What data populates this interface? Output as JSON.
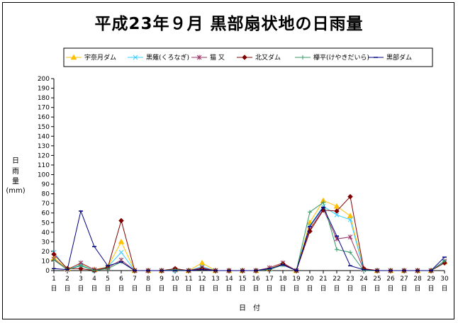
{
  "chart_data": {
    "type": "line",
    "title": "平成23年９月  黒部扇状地の日雨量",
    "ylabel": [
      "日",
      "雨",
      "量",
      "(mm)"
    ],
    "xlabel": "日　付",
    "ylim": [
      0,
      200
    ],
    "ytick_step": 10,
    "grid": false,
    "legend_position": "top",
    "categories": [
      "1",
      "2",
      "3",
      "4",
      "5",
      "6",
      "7",
      "8",
      "9",
      "10",
      "11",
      "12",
      "13",
      "14",
      "15",
      "16",
      "17",
      "18",
      "19",
      "20",
      "21",
      "22",
      "23",
      "24",
      "25",
      "26",
      "27",
      "28",
      "29",
      "30"
    ],
    "category_suffix": "日",
    "series": [
      {
        "name": "宇奈月ダム",
        "color": "#ffc000",
        "marker": "triangle",
        "values": [
          13,
          2,
          7,
          1,
          4,
          30,
          0,
          0,
          0,
          1,
          0,
          8,
          0,
          0,
          0,
          0,
          2,
          7,
          0,
          50,
          73,
          67,
          57,
          2,
          0,
          0,
          0,
          0,
          0,
          9
        ]
      },
      {
        "name": "黒薙(くろなぎ)",
        "color": "#33ccff",
        "marker": "x",
        "values": [
          19,
          1,
          6,
          0,
          4,
          19,
          0,
          0,
          0,
          0,
          0,
          4,
          0,
          0,
          0,
          0,
          1,
          6,
          0,
          47,
          67,
          58,
          53,
          1,
          0,
          0,
          0,
          0,
          0,
          9
        ]
      },
      {
        "name": "猫 又",
        "color": "#993366",
        "marker": "asterisk",
        "values": [
          12,
          1,
          8,
          1,
          3,
          11,
          0,
          0,
          0,
          1,
          0,
          3,
          0,
          0,
          0,
          0,
          3,
          8,
          0,
          43,
          64,
          33,
          35,
          1,
          0,
          0,
          0,
          0,
          0,
          10
        ]
      },
      {
        "name": "北又ダム",
        "color": "#800000",
        "marker": "diamond",
        "values": [
          17,
          2,
          2,
          0,
          3,
          52,
          0,
          0,
          0,
          2,
          0,
          2,
          0,
          0,
          0,
          0,
          1,
          7,
          0,
          41,
          63,
          62,
          77,
          2,
          0,
          0,
          0,
          0,
          0,
          8
        ]
      },
      {
        "name": "欅平(けやきだいら)",
        "color": "#339966",
        "marker": "plus",
        "values": [
          11,
          1,
          5,
          0,
          2,
          9,
          0,
          0,
          0,
          1,
          0,
          1,
          0,
          0,
          0,
          0,
          1,
          6,
          0,
          61,
          71,
          22,
          19,
          0,
          0,
          0,
          0,
          0,
          0,
          10
        ]
      },
      {
        "name": "黒部ダム",
        "color": "#000080",
        "marker": "dash",
        "values": [
          2,
          1,
          62,
          25,
          5,
          9,
          0,
          0,
          0,
          0,
          0,
          1,
          0,
          0,
          0,
          0,
          2,
          6,
          0,
          46,
          66,
          36,
          5,
          1,
          0,
          0,
          0,
          0,
          0,
          14
        ]
      }
    ]
  }
}
